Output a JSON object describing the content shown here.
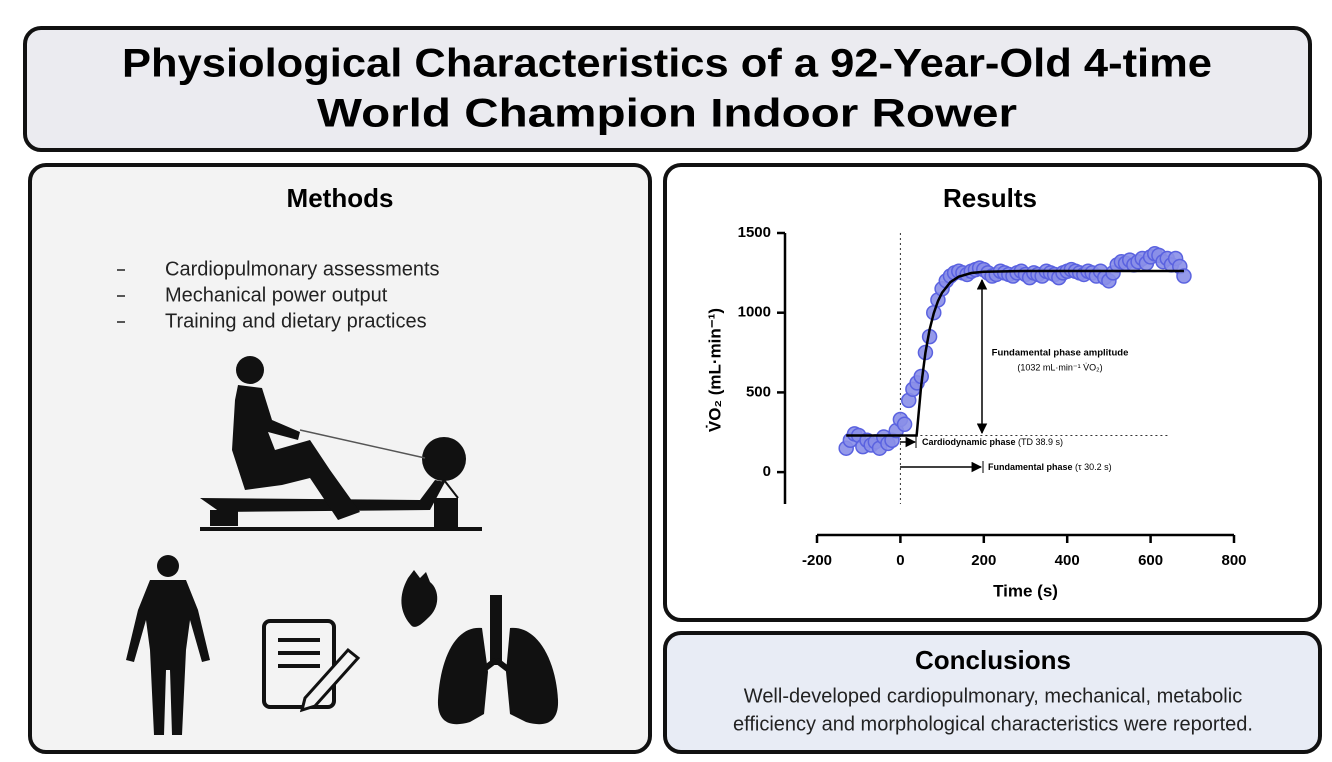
{
  "header": {
    "title_lines": [
      "Physiological Characteristics of a 92-Year-Old 4-time",
      "World Champion Indoor Rower"
    ]
  },
  "methods": {
    "title": "Methods",
    "items": [
      "Cardiopulmonary assessments",
      "Mechanical power output",
      "Training and dietary practices"
    ]
  },
  "results": {
    "title": "Results"
  },
  "chart_data": {
    "type": "scatter",
    "x_label": "Time (s)",
    "y_label": "V̇O₂ (mL·min⁻¹)",
    "x": [
      -130,
      -120,
      -110,
      -100,
      -90,
      -80,
      -70,
      -60,
      -50,
      -40,
      -30,
      -20,
      -10,
      0,
      10,
      20,
      30,
      40,
      50,
      60,
      70,
      80,
      90,
      100,
      110,
      120,
      130,
      140,
      150,
      160,
      170,
      180,
      190,
      200,
      210,
      220,
      230,
      240,
      250,
      260,
      270,
      280,
      290,
      300,
      310,
      320,
      330,
      340,
      350,
      360,
      370,
      380,
      390,
      400,
      410,
      420,
      430,
      440,
      450,
      460,
      470,
      480,
      490,
      500,
      510,
      520,
      530,
      540,
      550,
      560,
      570,
      580,
      590,
      600,
      610,
      620,
      630,
      640,
      650,
      660,
      670,
      680
    ],
    "series": [
      {
        "color": "#8a8fe8",
        "values": [
          150,
          200,
          240,
          230,
          160,
          200,
          170,
          190,
          150,
          220,
          180,
          200,
          260,
          330,
          300,
          450,
          520,
          560,
          600,
          750,
          850,
          1000,
          1080,
          1150,
          1200,
          1230,
          1250,
          1260,
          1250,
          1240,
          1260,
          1270,
          1280,
          1270,
          1250,
          1230,
          1240,
          1260,
          1250,
          1240,
          1230,
          1250,
          1260,
          1240,
          1220,
          1250,
          1240,
          1230,
          1260,
          1250,
          1240,
          1220,
          1250,
          1260,
          1270,
          1260,
          1250,
          1240,
          1260,
          1250,
          1230,
          1260,
          1220,
          1200,
          1250,
          1300,
          1320,
          1310,
          1330,
          1300,
          1320,
          1340,
          1310,
          1350,
          1370,
          1360,
          1320,
          1340,
          1300,
          1340,
          1290,
          1230
        ]
      }
    ],
    "fit": {
      "color": "#000000",
      "x": [
        -130,
        38.9,
        50,
        60,
        70,
        80,
        90,
        100,
        120,
        140,
        170,
        200,
        300,
        680
      ],
      "values": [
        230,
        230,
        547,
        749,
        894,
        997,
        1072,
        1126,
        1192,
        1226,
        1249,
        1257,
        1262,
        1262
      ]
    },
    "xlim": [
      -200,
      800
    ],
    "ylim": [
      -200,
      1500
    ],
    "xticks": [
      -200,
      0,
      200,
      400,
      600,
      800
    ],
    "yticks": [
      0,
      500,
      1000,
      1500
    ],
    "baseline": 230,
    "onset": 0,
    "annotations": {
      "amplitude_title": "Fundamental phase amplitude",
      "amplitude_value": "(1032  mL·min⁻¹ V̇O₂)",
      "cardio_name": "Cardiodynamic phase",
      "cardio_value": " (TD 38.9 s)",
      "fund_name": "Fundamental phase",
      "fund_value": " (τ 30.2 s)"
    }
  },
  "conclusions": {
    "title": "Conclusions",
    "lines": [
      "Well-developed cardiopulmonary, mechanical, metabolic",
      "efficiency and morphological characteristics were reported."
    ]
  }
}
